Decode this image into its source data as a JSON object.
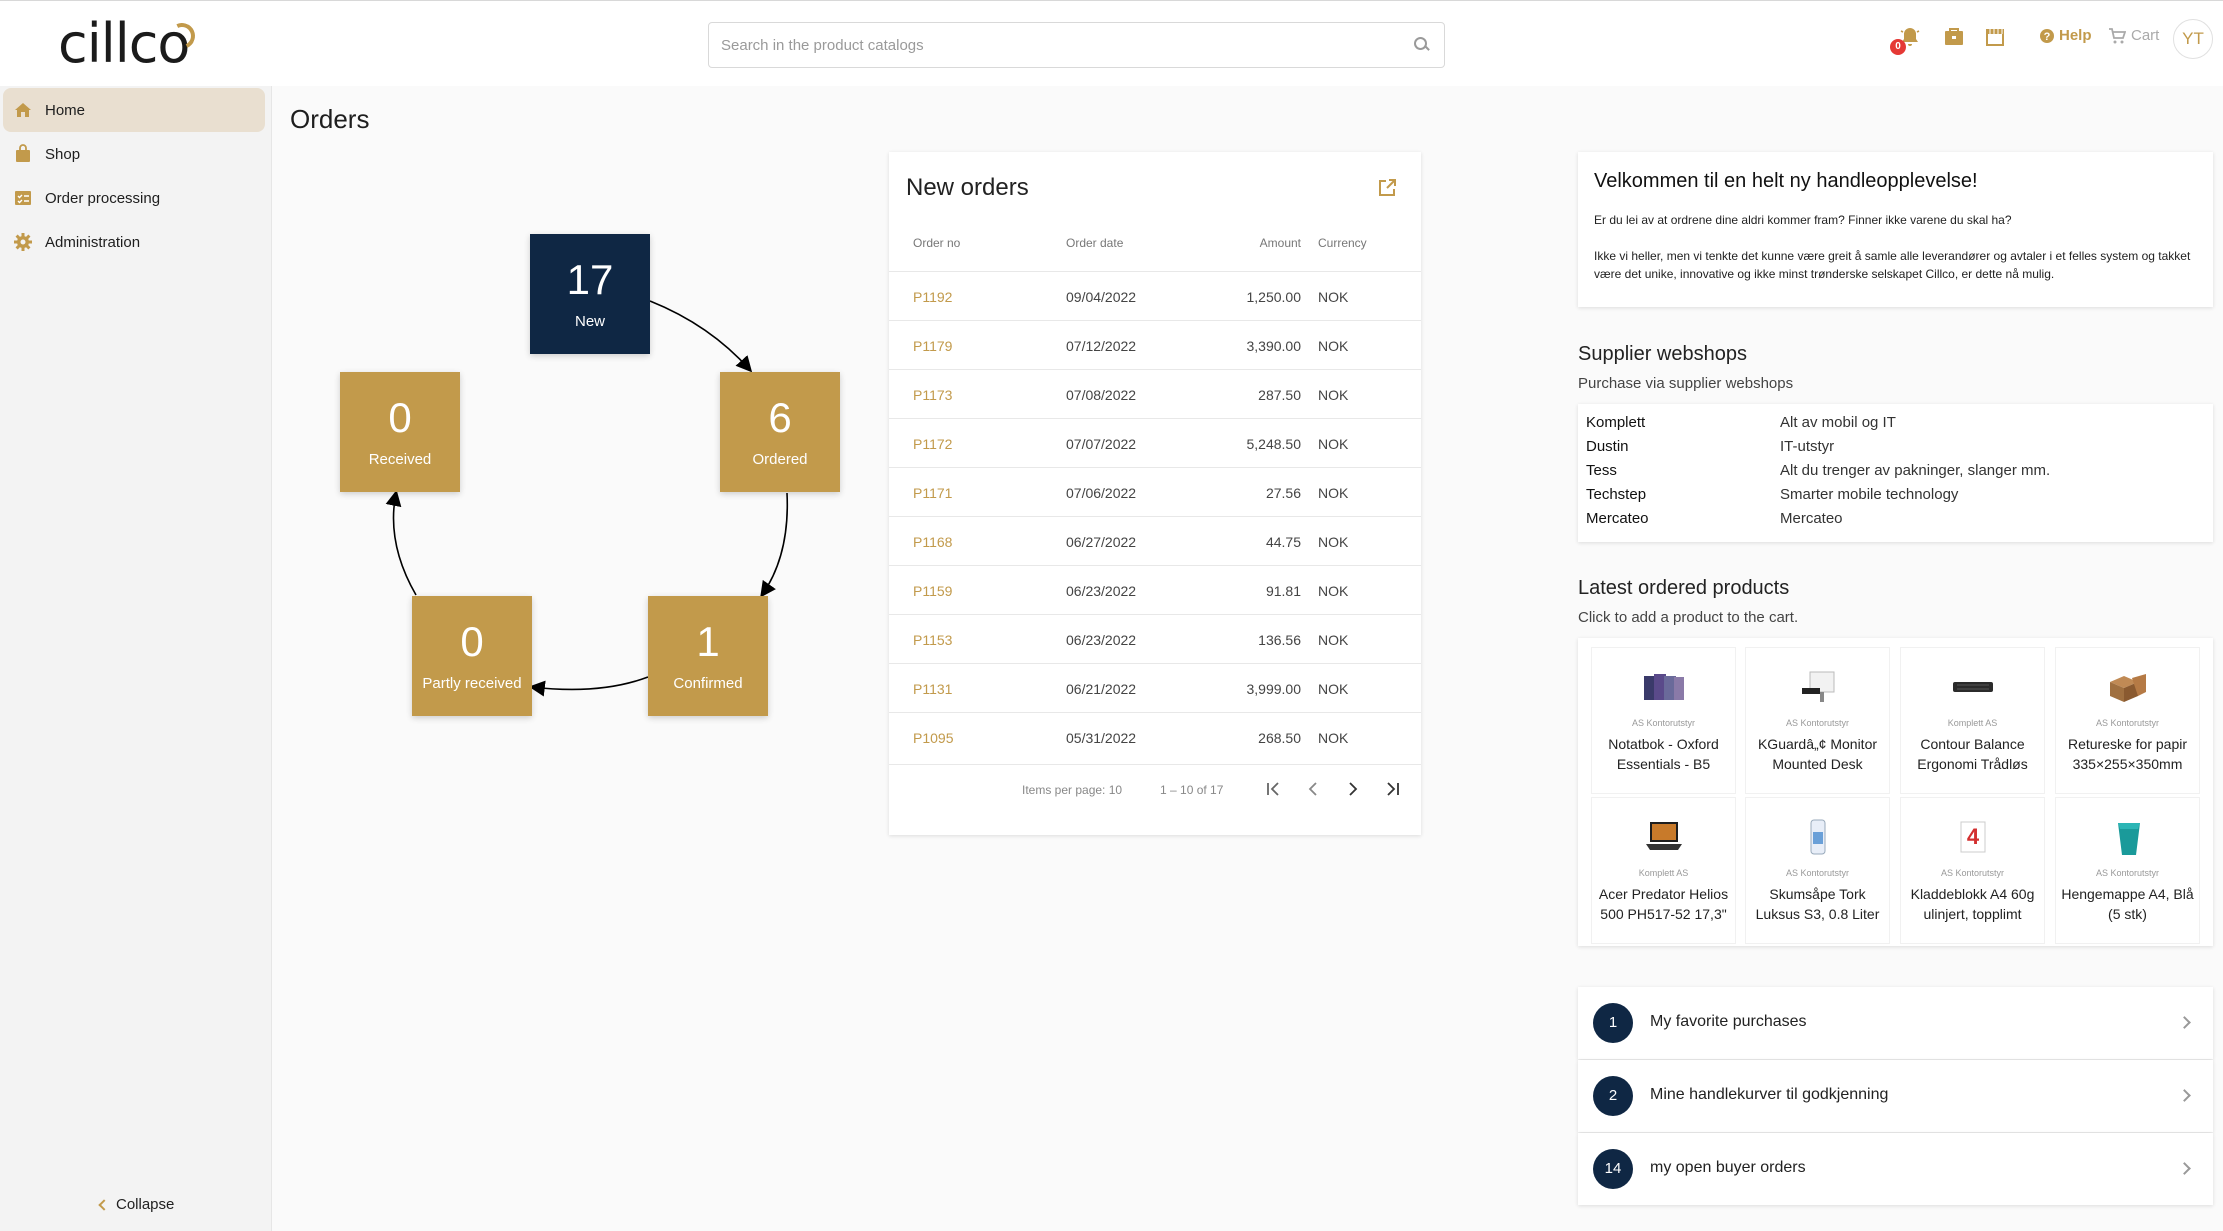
{
  "header": {
    "logo": "cillco",
    "search_placeholder": "Search in the product catalogs",
    "notification_count": "0",
    "help_label": "Help",
    "cart_label": "Cart",
    "user_initials": "YT"
  },
  "sidebar": {
    "items": [
      {
        "label": "Home",
        "icon": "home-icon"
      },
      {
        "label": "Shop",
        "icon": "shopping-bag-icon"
      },
      {
        "label": "Order processing",
        "icon": "checklist-icon"
      },
      {
        "label": "Administration",
        "icon": "gear-icon"
      }
    ],
    "collapse_label": "Collapse"
  },
  "page": {
    "title": "Orders"
  },
  "order_flow": {
    "new": {
      "count": "17",
      "label": "New"
    },
    "ordered": {
      "count": "6",
      "label": "Ordered"
    },
    "confirmed": {
      "count": "1",
      "label": "Confirmed"
    },
    "partly_received": {
      "count": "0",
      "label": "Partly received"
    },
    "received": {
      "count": "0",
      "label": "Received"
    }
  },
  "new_orders": {
    "title": "New orders",
    "columns": [
      "Order no",
      "Order date",
      "Amount",
      "Currency"
    ],
    "rows": [
      {
        "id": "P1192",
        "date": "09/04/2022",
        "amount": "1,250.00",
        "currency": "NOK"
      },
      {
        "id": "P1179",
        "date": "07/12/2022",
        "amount": "3,390.00",
        "currency": "NOK"
      },
      {
        "id": "P1173",
        "date": "07/08/2022",
        "amount": "287.50",
        "currency": "NOK"
      },
      {
        "id": "P1172",
        "date": "07/07/2022",
        "amount": "5,248.50",
        "currency": "NOK"
      },
      {
        "id": "P1171",
        "date": "07/06/2022",
        "amount": "27.56",
        "currency": "NOK"
      },
      {
        "id": "P1168",
        "date": "06/27/2022",
        "amount": "44.75",
        "currency": "NOK"
      },
      {
        "id": "P1159",
        "date": "06/23/2022",
        "amount": "91.81",
        "currency": "NOK"
      },
      {
        "id": "P1153",
        "date": "06/23/2022",
        "amount": "136.56",
        "currency": "NOK"
      },
      {
        "id": "P1131",
        "date": "06/21/2022",
        "amount": "3,999.00",
        "currency": "NOK"
      },
      {
        "id": "P1095",
        "date": "05/31/2022",
        "amount": "268.50",
        "currency": "NOK"
      }
    ],
    "items_per_page": "Items per page: 10",
    "range": "1 – 10 of 17"
  },
  "welcome": {
    "title": "Velkommen til en helt ny handleopplevelse!",
    "p1": "Er du lei av at ordrene dine aldri kommer fram? Finner ikke varene du skal ha?",
    "p2": "Ikke vi heller, men vi tenkte det kunne være greit å samle alle leverandører og avtaler i et felles system og takket være det unike, innovative og ikke minst trønderske selskapet Cillco, er dette nå mulig."
  },
  "webshops": {
    "title": "Supplier webshops",
    "subtitle": "Purchase via supplier webshops",
    "items": [
      {
        "name": "Komplett",
        "desc": "Alt av mobil og IT"
      },
      {
        "name": "Dustin",
        "desc": "IT-utstyr"
      },
      {
        "name": "Tess",
        "desc": "Alt du trenger av pakninger, slanger mm."
      },
      {
        "name": "Techstep",
        "desc": "Smarter mobile technology"
      },
      {
        "name": "Mercateo",
        "desc": "Mercateo"
      }
    ]
  },
  "latest_products": {
    "title": "Latest ordered products",
    "subtitle": "Click to add a product to the cart.",
    "items": [
      {
        "vendor": "AS Kontorutstyr",
        "name": "Notatbok - Oxford Essentials - B5",
        "img_color": "#4a4a7a"
      },
      {
        "vendor": "AS Kontorutstyr",
        "name": "KGuardâ„¢ Monitor Mounted Desk",
        "img_color": "#333333"
      },
      {
        "vendor": "Komplett AS",
        "name": "Contour Balance Ergonomi Trådløs",
        "img_color": "#2b2b2b"
      },
      {
        "vendor": "AS Kontorutstyr",
        "name": "Retureske for papir 335×255×350mm",
        "img_color": "#a07040"
      },
      {
        "vendor": "Komplett AS",
        "name": "Acer Predator Helios 500 PH517-52 17,3\"",
        "img_color": "#1e1e1e"
      },
      {
        "vendor": "AS Kontorutstyr",
        "name": "Skumsåpe Tork Luksus S3, 0.8 Liter",
        "img_color": "#6aa0d8"
      },
      {
        "vendor": "AS Kontorutstyr",
        "name": "Kladdeblokk A4 60g ulinjert, topplimt",
        "img_color": "#d32f2f"
      },
      {
        "vendor": "AS Kontorutstyr",
        "name": "Hengemappe A4, Blå (5 stk)",
        "img_color": "#1a9a9a"
      }
    ]
  },
  "actions": [
    {
      "count": "1",
      "label": "My favorite purchases"
    },
    {
      "count": "2",
      "label": "Mine handlekurver til godkjenning"
    },
    {
      "count": "14",
      "label": "my open buyer orders"
    }
  ],
  "colors": {
    "accent": "#c29a4b",
    "navy": "#0f2744",
    "active_nav": "#e9dfd0"
  }
}
